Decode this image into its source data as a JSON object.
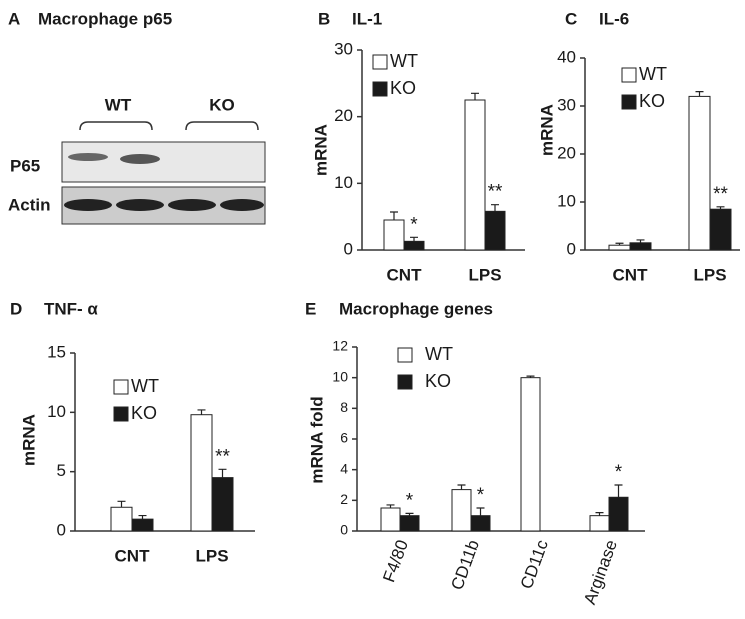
{
  "blot": {
    "panel": "A",
    "title": "Macrophage p65",
    "groups": [
      "WT",
      "KO"
    ],
    "rows": [
      "P65",
      "Actin"
    ]
  },
  "chart_data": [
    {
      "type": "bar",
      "panel": "B",
      "title": "IL-1",
      "ylabel": "mRNA",
      "categories": [
        "CNT",
        "LPS"
      ],
      "ylim": [
        0,
        30
      ],
      "yticks": [
        0,
        10,
        20,
        30
      ],
      "series": [
        {
          "name": "WT",
          "color": "#ffffff",
          "values": [
            4.5,
            22.5
          ],
          "errors": [
            1.2,
            1
          ],
          "significance": [
            null,
            null
          ]
        },
        {
          "name": "KO",
          "color": "#1a1a1a",
          "values": [
            1.3,
            5.8
          ],
          "errors": [
            0.6,
            1
          ],
          "significance": [
            "*",
            "**"
          ]
        }
      ]
    },
    {
      "type": "bar",
      "panel": "C",
      "title": "IL-6",
      "ylabel": "mRNA",
      "categories": [
        "CNT",
        "LPS"
      ],
      "ylim": [
        0,
        40
      ],
      "yticks": [
        0,
        10,
        20,
        30,
        40
      ],
      "series": [
        {
          "name": "WT",
          "color": "#ffffff",
          "values": [
            1,
            32
          ],
          "errors": [
            0.4,
            1
          ],
          "significance": [
            null,
            null
          ]
        },
        {
          "name": "KO",
          "color": "#1a1a1a",
          "values": [
            1.5,
            8.5
          ],
          "errors": [
            0.6,
            0.5
          ],
          "significance": [
            null,
            "**"
          ]
        }
      ]
    },
    {
      "type": "bar",
      "panel": "D",
      "title": "TNF- α",
      "ylabel": "mRNA",
      "categories": [
        "CNT",
        "LPS"
      ],
      "ylim": [
        0,
        15
      ],
      "yticks": [
        0,
        5,
        10,
        15
      ],
      "series": [
        {
          "name": "WT",
          "color": "#ffffff",
          "values": [
            2,
            9.8
          ],
          "errors": [
            0.5,
            0.4
          ],
          "significance": [
            null,
            null
          ]
        },
        {
          "name": "KO",
          "color": "#1a1a1a",
          "values": [
            1,
            4.5
          ],
          "errors": [
            0.3,
            0.7
          ],
          "significance": [
            null,
            "**"
          ]
        }
      ]
    },
    {
      "type": "bar",
      "panel": "E",
      "title": "Macrophage genes",
      "ylabel": "mRNA fold",
      "categories": [
        "F4/80",
        "CD11b",
        "CD11c",
        "Arginase"
      ],
      "ylim": [
        0,
        12
      ],
      "yticks": [
        0,
        2,
        4,
        6,
        8,
        10,
        12
      ],
      "series": [
        {
          "name": "WT",
          "color": "#ffffff",
          "values": [
            1.5,
            2.7,
            10,
            1.0
          ],
          "errors": [
            0.2,
            0.3,
            0.1,
            0.2
          ],
          "significance": [
            null,
            null,
            null,
            null
          ]
        },
        {
          "name": "KO",
          "color": "#1a1a1a",
          "values": [
            1.0,
            1.0,
            null,
            2.2
          ],
          "errors": [
            0.15,
            0.5,
            null,
            0.8
          ],
          "significance": [
            "*",
            "*",
            null,
            "*"
          ]
        }
      ]
    }
  ]
}
